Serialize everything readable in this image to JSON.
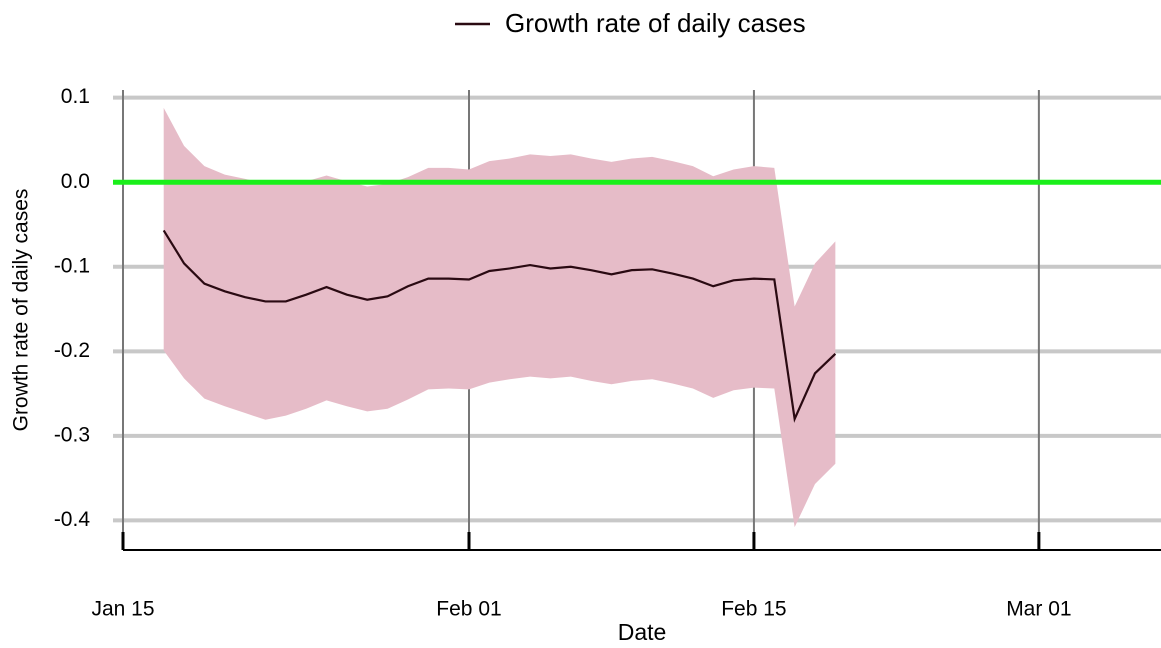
{
  "chart_data": {
    "type": "line",
    "legend": "top",
    "xlabel": "Date",
    "ylabel": "Growth rate of daily cases",
    "x": [
      "01-17",
      "01-18",
      "01-19",
      "01-20",
      "01-21",
      "01-22",
      "01-23",
      "01-24",
      "01-25",
      "01-26",
      "01-27",
      "01-28",
      "01-29",
      "01-30",
      "01-31",
      "02-01",
      "02-02",
      "02-03",
      "02-04",
      "02-05",
      "02-06",
      "02-07",
      "02-08",
      "02-09",
      "02-10",
      "02-11",
      "02-12",
      "02-13",
      "02-14",
      "02-15",
      "02-16",
      "02-17",
      "02-18",
      "02-19"
    ],
    "series": [
      {
        "name": "Growth rate of daily cases",
        "color": "#2a0a12",
        "values": [
          -0.057,
          -0.096,
          -0.12,
          -0.129,
          -0.136,
          -0.141,
          -0.141,
          -0.133,
          -0.124,
          -0.133,
          -0.139,
          -0.135,
          -0.123,
          -0.114,
          -0.114,
          -0.115,
          -0.105,
          -0.102,
          -0.098,
          -0.102,
          -0.1,
          -0.104,
          -0.109,
          -0.104,
          -0.103,
          -0.108,
          -0.114,
          -0.123,
          -0.116,
          -0.114,
          -0.115,
          -0.28,
          -0.226,
          -0.203
        ]
      }
    ],
    "band": {
      "color": "#e6bcc8",
      "upper": [
        0.088,
        0.043,
        0.019,
        0.009,
        0.004,
        -0.002,
        -0.002,
        0.001,
        0.008,
        0.001,
        -0.005,
        -0.002,
        0.006,
        0.017,
        0.017,
        0.015,
        0.025,
        0.028,
        0.033,
        0.031,
        0.033,
        0.028,
        0.024,
        0.028,
        0.03,
        0.025,
        0.019,
        0.007,
        0.015,
        0.019,
        0.017,
        -0.147,
        -0.096,
        -0.07
      ],
      "lower": [
        -0.199,
        -0.232,
        -0.256,
        -0.265,
        -0.273,
        -0.281,
        -0.276,
        -0.268,
        -0.258,
        -0.265,
        -0.271,
        -0.268,
        -0.257,
        -0.245,
        -0.244,
        -0.245,
        -0.237,
        -0.233,
        -0.23,
        -0.232,
        -0.23,
        -0.235,
        -0.239,
        -0.235,
        -0.233,
        -0.238,
        -0.244,
        -0.255,
        -0.246,
        -0.243,
        -0.244,
        -0.408,
        -0.357,
        -0.333
      ]
    },
    "hline": {
      "value": 0,
      "color": "#1aef1a"
    },
    "xlim": [
      "01-15",
      "03-07"
    ],
    "xticks": [
      {
        "value": "01-15",
        "label": "Jan 15"
      },
      {
        "value": "02-01",
        "label": "Feb 01"
      },
      {
        "value": "02-15",
        "label": "Feb 15"
      },
      {
        "value": "03-01",
        "label": "Mar 01"
      }
    ],
    "ylim": [
      -0.435,
      0.115
    ],
    "yticks": [
      0.1,
      {
        "value": 0,
        "label": "0.0"
      },
      -0.1,
      -0.2,
      -0.3,
      -0.4
    ],
    "grid": true
  }
}
